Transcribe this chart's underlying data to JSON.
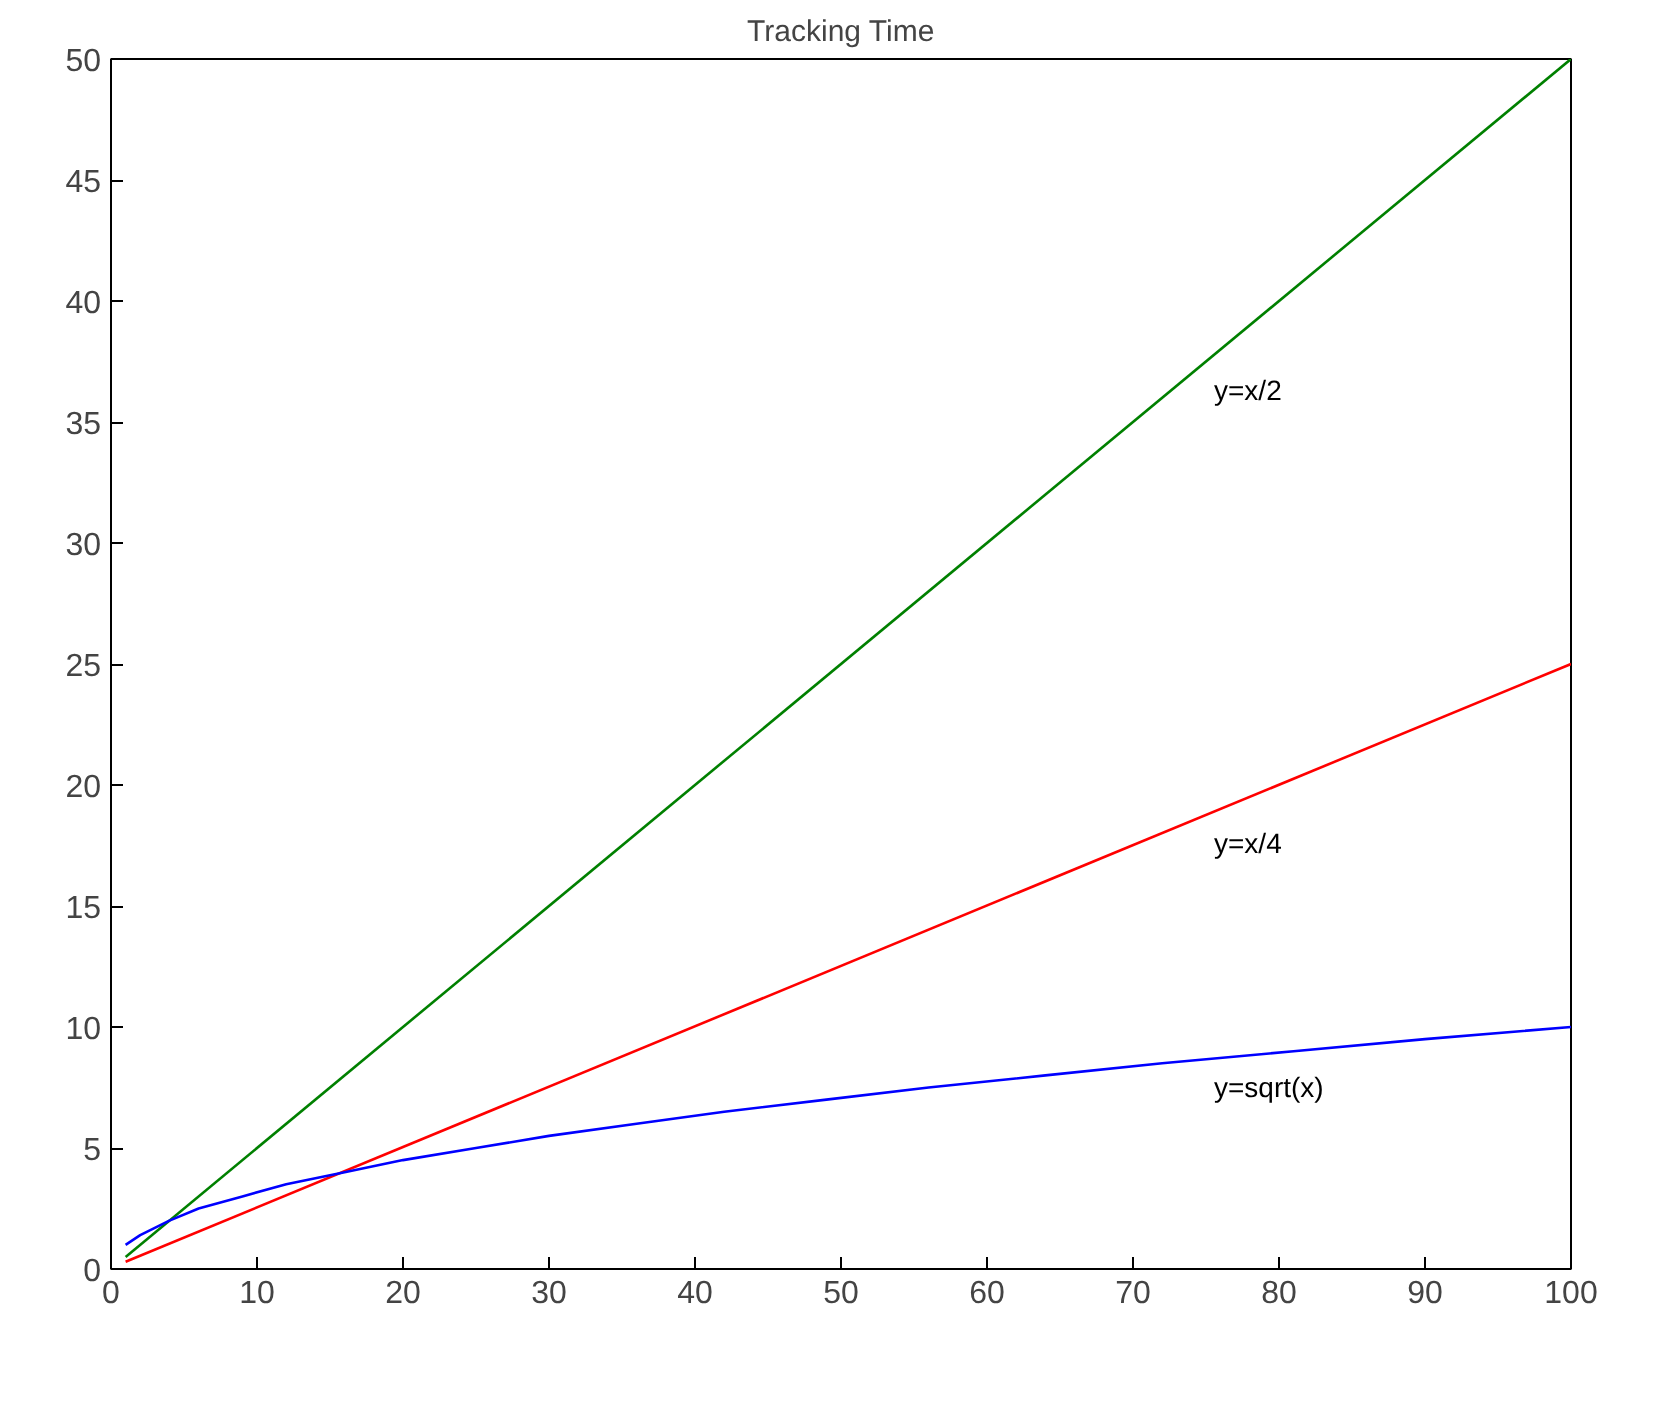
{
  "chart_data": {
    "type": "line",
    "title": "Tracking Time",
    "xlim": [
      0,
      100
    ],
    "ylim": [
      0,
      50
    ],
    "xticks": [
      0,
      10,
      20,
      30,
      40,
      50,
      60,
      70,
      80,
      90,
      100
    ],
    "yticks": [
      0,
      5,
      10,
      15,
      20,
      25,
      30,
      35,
      40,
      45,
      50
    ],
    "grid": false,
    "marker": "none",
    "line_style": "solid",
    "series": [
      {
        "name": "y=x/2",
        "color": "#008000",
        "x": [
          1,
          100
        ],
        "values": [
          0.5,
          50
        ]
      },
      {
        "name": "y=x/4",
        "color": "#ff0000",
        "x": [
          1,
          100
        ],
        "values": [
          0.3,
          25
        ]
      },
      {
        "name": "y=sqrt(x)",
        "color": "#0000ff",
        "x": [
          1,
          2,
          4,
          6,
          9,
          12,
          16,
          20,
          25,
          30,
          36,
          42,
          49,
          56,
          64,
          72,
          81,
          90,
          100
        ],
        "values": [
          1,
          1.4,
          2,
          2.5,
          3,
          3.5,
          4,
          4.5,
          5,
          5.5,
          6,
          6.5,
          7,
          7.5,
          8,
          8.5,
          9,
          9.5,
          10
        ]
      }
    ]
  }
}
